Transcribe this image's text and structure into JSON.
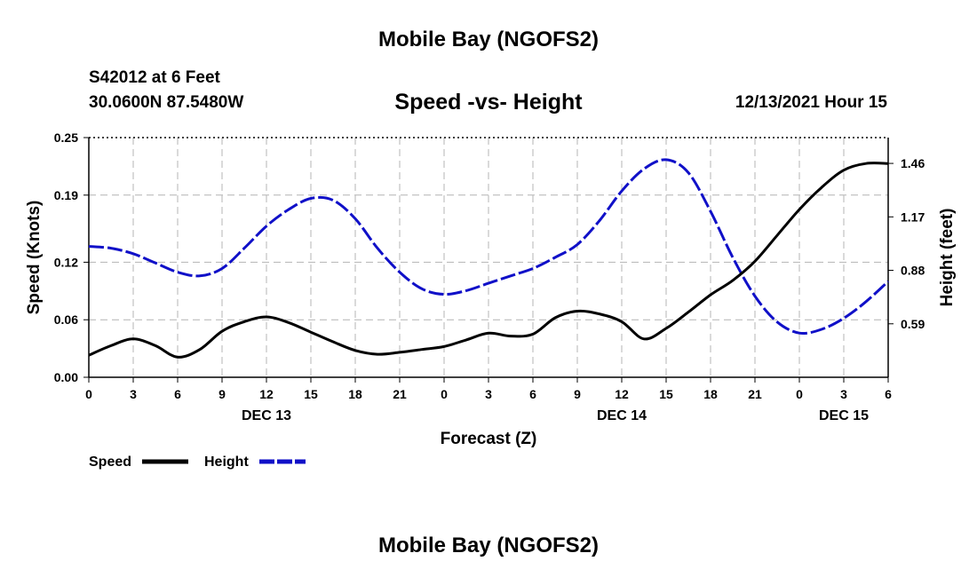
{
  "header": {
    "title": "Mobile Bay (NGOFS2)",
    "station": "S42012 at 6 Feet",
    "coords": "30.0600N  87.5480W",
    "subtitle": "Speed -vs- Height",
    "run_time": "12/13/2021 Hour 15"
  },
  "footer": {
    "title": "Mobile Bay (NGOFS2)"
  },
  "colors": {
    "speed": "#000000",
    "height": "#1010c8",
    "grid": "#b4b4b4"
  },
  "chart_data": {
    "type": "line",
    "xlabel": "Forecast (Z)",
    "ylabel_left": "Speed (Knots)",
    "ylabel_right": "Height (feet)",
    "x_range": [
      0,
      54
    ],
    "x_ticks": [
      0,
      3,
      6,
      9,
      12,
      15,
      18,
      21,
      24,
      27,
      30,
      33,
      36,
      39,
      42,
      45,
      48,
      51,
      54
    ],
    "x_tick_labels": [
      "0",
      "3",
      "6",
      "9",
      "12",
      "15",
      "18",
      "21",
      "0",
      "3",
      "6",
      "9",
      "12",
      "15",
      "18",
      "21",
      "0",
      "3",
      "6"
    ],
    "date_labels": [
      {
        "x": 12,
        "label": "DEC 13"
      },
      {
        "x": 36,
        "label": "DEC 14"
      },
      {
        "x": 51,
        "label": "DEC 15"
      }
    ],
    "y_left": {
      "range": [
        0,
        0.25
      ],
      "ticks": [
        0,
        0.06,
        0.12,
        0.19,
        0.25
      ],
      "tick_labels": [
        "0.00",
        "0.06",
        "0.12",
        "0.19",
        "0.25"
      ]
    },
    "y_right": {
      "range": [
        0.3,
        1.6
      ],
      "ticks": [
        0.59,
        0.88,
        1.17,
        1.46
      ],
      "tick_labels": [
        "0.59",
        "0.88",
        "1.17",
        "1.46"
      ]
    },
    "grid": true,
    "legend_position": "bottom-left",
    "series": [
      {
        "name": "Speed",
        "axis": "left",
        "style": "solid",
        "x": [
          0,
          1.5,
          3,
          4.5,
          6,
          7.5,
          9,
          10.5,
          12,
          13.5,
          15,
          16.5,
          18,
          19.5,
          21,
          22.5,
          24,
          25.5,
          27,
          28.5,
          30,
          31.5,
          33,
          34.5,
          36,
          37.5,
          39,
          40.5,
          42,
          43.5,
          45,
          46.5,
          48,
          49.5,
          51,
          52.5,
          54
        ],
        "values": [
          0.023,
          0.033,
          0.04,
          0.033,
          0.021,
          0.029,
          0.048,
          0.058,
          0.063,
          0.057,
          0.047,
          0.037,
          0.028,
          0.024,
          0.026,
          0.029,
          0.032,
          0.039,
          0.046,
          0.043,
          0.045,
          0.062,
          0.069,
          0.066,
          0.058,
          0.04,
          0.051,
          0.068,
          0.086,
          0.101,
          0.121,
          0.148,
          0.175,
          0.198,
          0.216,
          0.223,
          0.223
        ]
      },
      {
        "name": "Height",
        "axis": "right",
        "style": "dashed",
        "x": [
          0,
          1.5,
          3,
          4.5,
          6,
          7.5,
          9,
          10.5,
          12,
          13.5,
          15,
          16.5,
          18,
          19.5,
          21,
          22.5,
          24,
          25.5,
          27,
          28.5,
          30,
          31.5,
          33,
          34.5,
          36,
          37.5,
          39,
          40.5,
          42,
          43.5,
          45,
          46.5,
          48,
          49.5,
          51,
          52.5,
          54
        ],
        "values": [
          1.01,
          1.0,
          0.97,
          0.92,
          0.87,
          0.85,
          0.89,
          1.0,
          1.12,
          1.21,
          1.27,
          1.26,
          1.16,
          1.0,
          0.87,
          0.78,
          0.75,
          0.77,
          0.81,
          0.85,
          0.89,
          0.95,
          1.02,
          1.15,
          1.31,
          1.43,
          1.48,
          1.41,
          1.2,
          0.95,
          0.74,
          0.6,
          0.54,
          0.56,
          0.62,
          0.71,
          0.82
        ]
      }
    ]
  }
}
